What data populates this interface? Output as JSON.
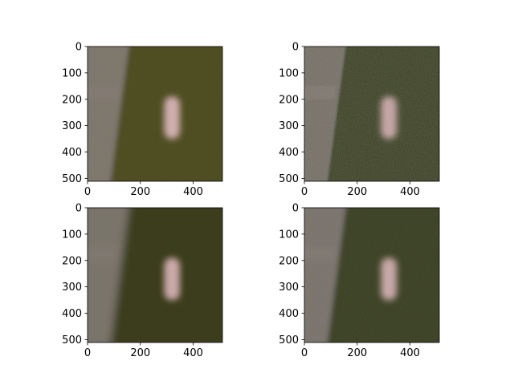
{
  "chart_data": [
    {
      "type": "heatmap",
      "panel": "top-left",
      "content": "image",
      "xlim": [
        0,
        511
      ],
      "ylim": [
        511,
        0
      ],
      "x_ticks": [
        "0",
        "200",
        "400"
      ],
      "y_ticks": [
        "0",
        "100",
        "200",
        "300",
        "400",
        "500"
      ],
      "colors": {
        "background": "#4b4a1c",
        "strip": "#7d746b",
        "spot": "#cfaeae"
      },
      "noise": "low",
      "blur": "medium"
    },
    {
      "type": "heatmap",
      "panel": "top-right",
      "content": "image",
      "xlim": [
        0,
        511
      ],
      "ylim": [
        511,
        0
      ],
      "x_ticks": [
        "0",
        "200",
        "400"
      ],
      "y_ticks": [
        "0",
        "100",
        "200",
        "300",
        "400",
        "500"
      ],
      "colors": {
        "background": "#363a1e",
        "strip": "#706a61",
        "spot": "#c6a2a2"
      },
      "noise": "high",
      "blur": "low"
    },
    {
      "type": "heatmap",
      "panel": "bottom-left",
      "content": "image",
      "xlim": [
        0,
        511
      ],
      "ylim": [
        511,
        0
      ],
      "x_ticks": [
        "0",
        "200",
        "400"
      ],
      "y_ticks": [
        "0",
        "100",
        "200",
        "300",
        "400",
        "500"
      ],
      "colors": {
        "background": "#3b3d1e",
        "strip": "#7a746b",
        "spot": "#caa9a9"
      },
      "noise": "none",
      "blur": "high"
    },
    {
      "type": "heatmap",
      "panel": "bottom-right",
      "content": "image",
      "xlim": [
        0,
        511
      ],
      "ylim": [
        511,
        0
      ],
      "x_ticks": [
        "0",
        "200",
        "400"
      ],
      "y_ticks": [
        "0",
        "100",
        "200",
        "300",
        "400",
        "500"
      ],
      "colors": {
        "background": "#363a1e",
        "strip": "#766f67",
        "spot": "#c8a6a6"
      },
      "noise": "medium",
      "blur": "medium"
    }
  ]
}
